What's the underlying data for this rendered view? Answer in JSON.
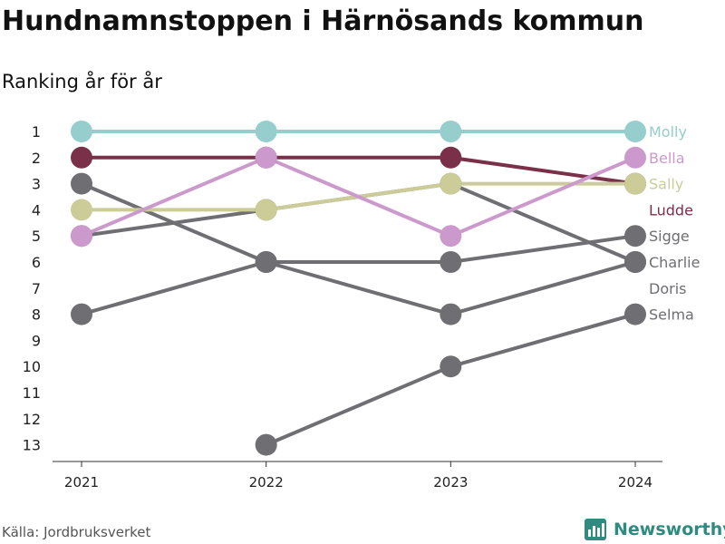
{
  "title": "Hundnamnstoppen i Härnösands kommun",
  "subtitle": "Ranking år för år",
  "source": "Källa: Jordbruksverket",
  "brand": {
    "name": "Newsworthy",
    "icon": "bar-chart-logo-icon",
    "color": "#2f8a80"
  },
  "chart_data": {
    "type": "line",
    "subtype": "bump",
    "x": [
      "2021",
      "2022",
      "2023",
      "2024"
    ],
    "y_reversed": true,
    "ylim": [
      1,
      13
    ],
    "yticks": [
      1,
      2,
      3,
      4,
      5,
      6,
      7,
      8,
      9,
      10,
      11,
      12,
      13
    ],
    "grid": false,
    "legend": "end-labels",
    "series": [
      {
        "name": "Molly",
        "color": "#96cdcd",
        "ranks": [
          1,
          1,
          1,
          1
        ]
      },
      {
        "name": "Bella",
        "color": "#cc99cc",
        "ranks": [
          5,
          2,
          5,
          2
        ]
      },
      {
        "name": "Sally",
        "color": "#cccc99",
        "ranks": [
          4,
          4,
          3,
          3
        ]
      },
      {
        "name": "Ludde",
        "color": "#7a3048",
        "ranks": [
          2,
          2,
          2,
          3
        ]
      },
      {
        "name": "Sigge",
        "color": "#6e6e73",
        "ranks": [
          8,
          6,
          6,
          5
        ]
      },
      {
        "name": "Charlie",
        "color": "#6e6e73",
        "ranks": [
          3,
          6,
          8,
          6
        ]
      },
      {
        "name": "Doris",
        "color": "#6e6e73",
        "ranks": [
          5,
          4,
          3,
          6
        ]
      },
      {
        "name": "Selma",
        "color": "#6e6e73",
        "ranks": [
          null,
          13,
          10,
          8
        ]
      }
    ]
  }
}
